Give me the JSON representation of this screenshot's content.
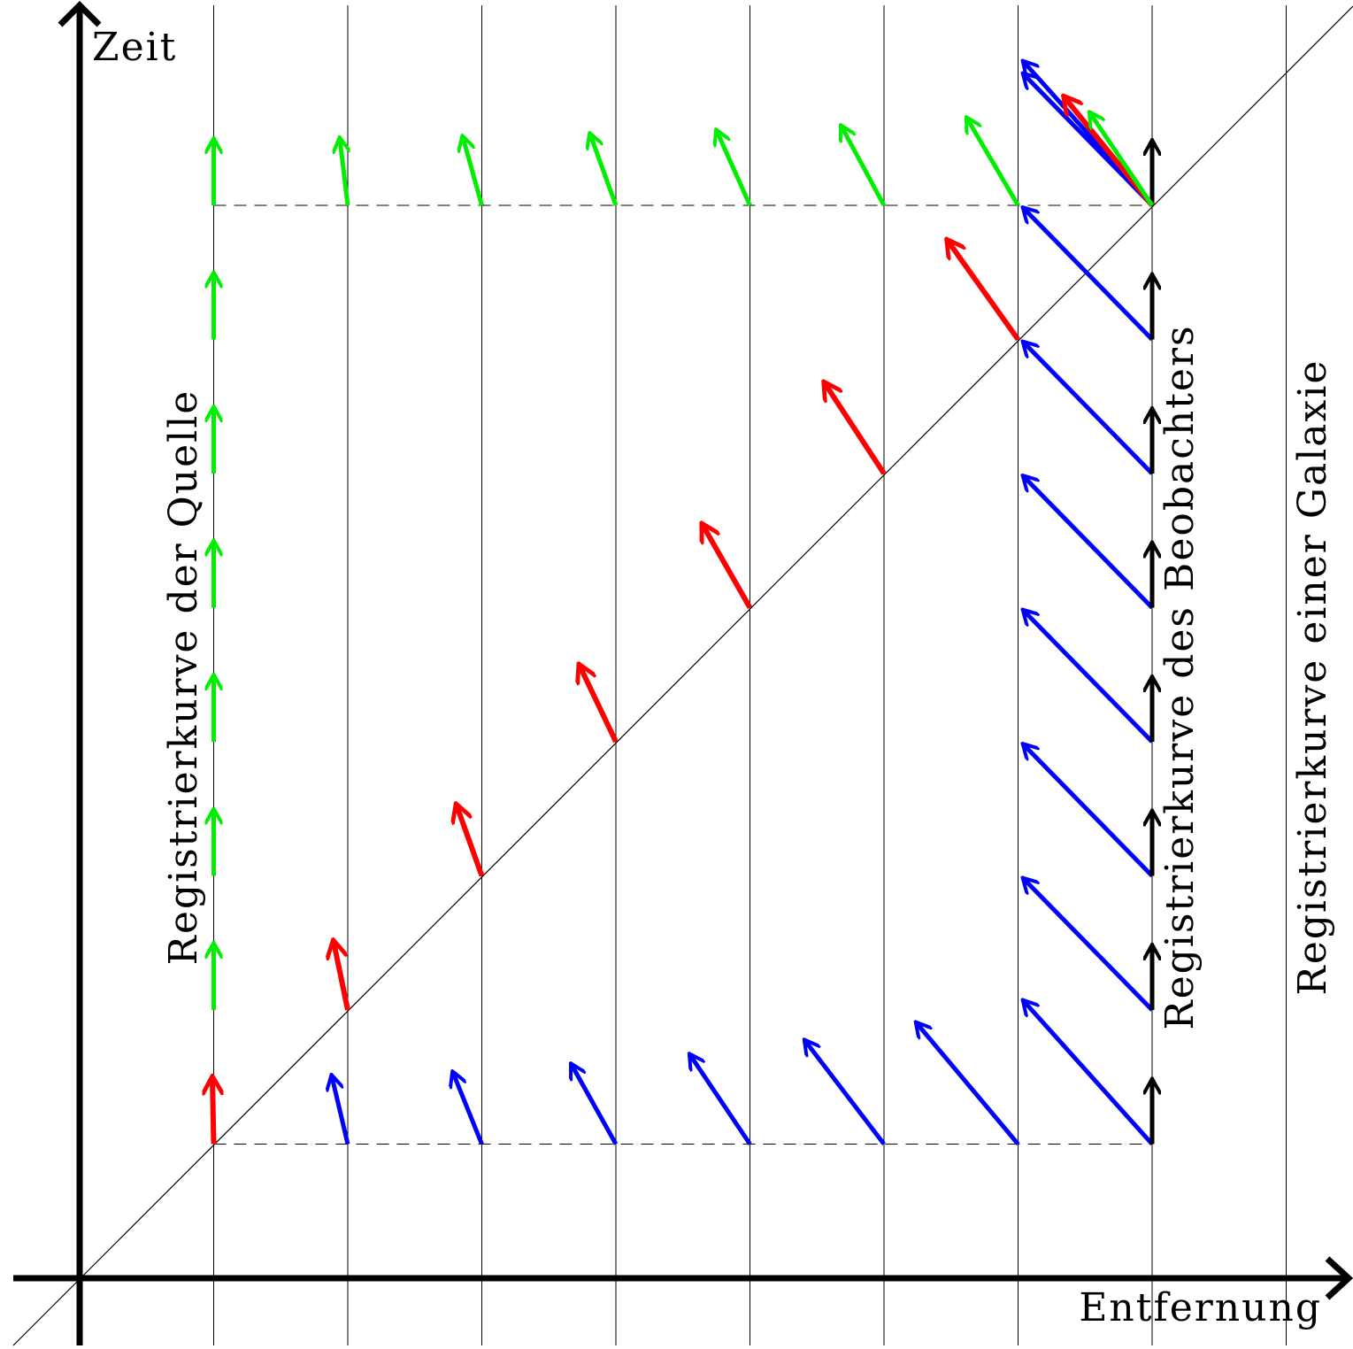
{
  "axes": {
    "x_label": "Entfernung",
    "y_label": "Zeit"
  },
  "labels": {
    "source_worldline": "Registrierkurve der Quelle",
    "observer_worldline": "Registrierkurve des Beobachters",
    "galaxy_worldline": "Registrierkurve einer Galaxie"
  },
  "colors": {
    "axis": "#000000",
    "grid": "#000000",
    "emission_vectors": "#ff0000",
    "observer_vectors": "#0000ff",
    "source_vectors": "#00ee00",
    "local_time_vectors": "#000000"
  },
  "diagram": {
    "galaxy_count": 9,
    "worldlines": {
      "source_index": 1,
      "observer_index": 8
    },
    "light_ray": "diagonal"
  }
}
